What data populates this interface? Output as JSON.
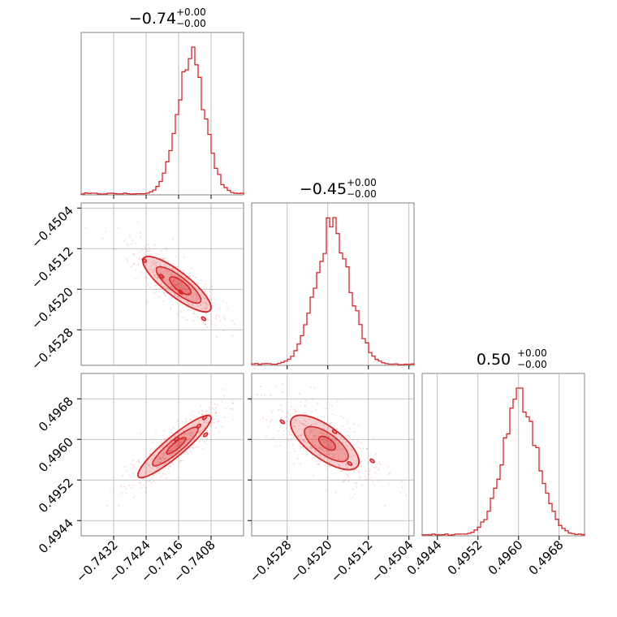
{
  "chart_data": {
    "type": "corner",
    "color": "#d62728",
    "parameters": [
      {
        "title_value": "−0.74",
        "title_plus": "+0.00",
        "title_minus": "−0.00",
        "range": [
          -0.744,
          -0.74
        ],
        "ticks": [
          -0.7432,
          -0.7424,
          -0.7416,
          -0.7408
        ],
        "tick_labels": [
          "−0.7432",
          "−0.7424",
          "−0.7416",
          "−0.7408"
        ],
        "hist_peak": -0.74129,
        "hist_sigma": 0.00034
      },
      {
        "title_value": "−0.45",
        "title_plus": "+0.00",
        "title_minus": "−0.00",
        "range": [
          -0.4535,
          -0.4503
        ],
        "ticks": [
          -0.4528,
          -0.452,
          -0.4512,
          -0.4504
        ],
        "tick_labels": [
          "−0.4528",
          "−0.4520",
          "−0.4512",
          "−0.4504"
        ],
        "hist_peak": -0.4519,
        "hist_sigma": 0.00034
      },
      {
        "title_value": "0.50",
        "title_plus": "+0.00",
        "title_minus": "−0.00",
        "range": [
          0.4941,
          0.4973
        ],
        "ticks": [
          0.4944,
          0.4952,
          0.496,
          0.4968
        ],
        "tick_labels": [
          "0.4944",
          "0.4952",
          "0.4960",
          "0.4968"
        ],
        "hist_peak": 0.49604,
        "hist_sigma": 0.00034
      }
    ],
    "grid": true
  }
}
